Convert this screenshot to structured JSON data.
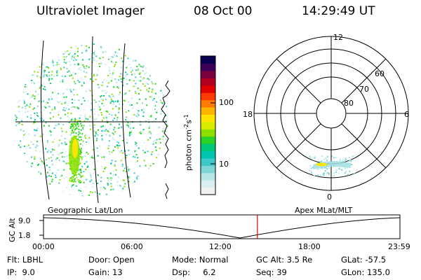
{
  "header": {
    "title": "Ultraviolet Imager",
    "date": "08 Oct 00",
    "time": "14:29:49 UT"
  },
  "colorbar": {
    "label_main": "photon cm",
    "label_exp1": "-2",
    "label_mid": "s",
    "label_exp2": "-1",
    "ticks": [
      "100",
      "10"
    ],
    "colors": [
      "#f0f0f0",
      "#d8eef0",
      "#b6e6e6",
      "#7ed6d6",
      "#3ec8c8",
      "#00c4b0",
      "#00c878",
      "#28d428",
      "#8ce000",
      "#d8ec00",
      "#ffe400",
      "#ffb400",
      "#ff7a00",
      "#ff3a00",
      "#e00000",
      "#b00020",
      "#7a0040",
      "#3c0058",
      "#0a0050"
    ]
  },
  "polar_plot": {
    "mlt_labels": {
      "top": "12",
      "left": "18",
      "right": "6",
      "bottom": "0"
    },
    "lat_labels": [
      "60",
      "70",
      "80"
    ]
  },
  "timeline": {
    "left_label": "Geographic Lat/Lon",
    "right_label": "Apex MLat/MLT",
    "axis_title": "GC Alt",
    "y_ticks": [
      "9.0",
      "1.8"
    ],
    "x_ticks": [
      "00:00",
      "06:00",
      "12:00",
      "18:00",
      "23:59"
    ],
    "current_time_fraction": 0.6
  },
  "info": {
    "flt": "Flt: LBHL",
    "ip": "IP:  9.0",
    "door": "Door: Open",
    "gain": "Gain: 13",
    "mode": "Mode: Normal",
    "dsp": "Dsp:     6.2",
    "gcalt": "GC Alt: 3.5 Re",
    "seq": "Seq: 39",
    "glat": "GLat: -57.5",
    "glon": "GLon: 135.0"
  }
}
